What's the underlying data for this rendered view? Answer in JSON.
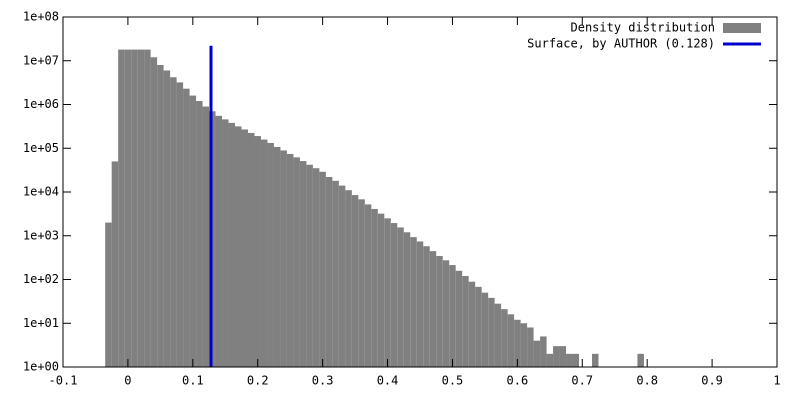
{
  "chart_data": {
    "type": "histogram",
    "log_y": true,
    "bins": [
      -0.035,
      -0.025,
      -0.015,
      -0.005,
      0.005,
      0.015,
      0.025,
      0.035,
      0.045,
      0.055,
      0.065,
      0.075,
      0.085,
      0.095,
      0.105,
      0.115,
      0.125,
      0.135,
      0.145,
      0.155,
      0.165,
      0.175,
      0.185,
      0.195,
      0.205,
      0.215,
      0.225,
      0.235,
      0.245,
      0.255,
      0.265,
      0.275,
      0.285,
      0.295,
      0.305,
      0.315,
      0.325,
      0.335,
      0.345,
      0.355,
      0.365,
      0.375,
      0.385,
      0.395,
      0.405,
      0.415,
      0.425,
      0.435,
      0.445,
      0.455,
      0.465,
      0.475,
      0.485,
      0.495,
      0.505,
      0.515,
      0.525,
      0.535,
      0.545,
      0.555,
      0.565,
      0.575,
      0.585,
      0.595,
      0.605,
      0.615,
      0.625,
      0.635,
      0.645,
      0.655,
      0.665,
      0.675,
      0.685,
      0.695,
      0.705,
      0.715,
      0.725,
      0.735,
      0.745,
      0.755,
      0.765,
      0.775,
      0.785,
      0.795
    ],
    "series": [
      {
        "name": "Density distribution",
        "color": "#808080",
        "values": [
          2000,
          50000,
          18000000,
          18000000,
          18000000,
          18000000,
          18000000,
          12000000,
          8000000,
          6000000,
          4200000,
          3200000,
          2300000,
          1600000,
          1200000,
          900000,
          700000,
          550000,
          457000,
          380000,
          316000,
          269000,
          224000,
          190000,
          158000,
          132000,
          107000,
          89000,
          74000,
          62000,
          51000,
          42000,
          35000,
          29000,
          22000,
          18000,
          14000,
          11000,
          8500,
          6800,
          5200,
          4100,
          3200,
          2500,
          1950,
          1550,
          1200,
          930,
          740,
          575,
          445,
          345,
          275,
          214,
          158,
          120,
          89,
          68,
          50,
          38,
          28,
          21,
          16,
          12,
          10,
          8,
          4,
          5,
          2,
          3,
          3,
          2,
          2,
          0,
          0,
          2,
          0,
          0,
          0,
          0,
          0,
          0,
          2
        ]
      }
    ],
    "vline": {
      "name": "Surface, by AUTHOR (0.128)",
      "color": "#0000cc",
      "x": 0.128,
      "y": [
        1,
        22000000
      ]
    },
    "xlim": [
      -0.1,
      1
    ],
    "xticks": [
      -0.1,
      0,
      0.1,
      0.2,
      0.3,
      0.4,
      0.5,
      0.6,
      0.7,
      0.8,
      0.9,
      1
    ],
    "ylim": [
      1,
      100000000
    ],
    "yticks": [
      {
        "value": 1,
        "label": "1e+00"
      },
      {
        "value": 10,
        "label": "1e+01"
      },
      {
        "value": 100,
        "label": "1e+02"
      },
      {
        "value": 1000,
        "label": "1e+03"
      },
      {
        "value": 10000,
        "label": "1e+04"
      },
      {
        "value": 100000,
        "label": "1e+05"
      },
      {
        "value": 1000000,
        "label": "1e+06"
      },
      {
        "value": 10000000,
        "label": "1e+07"
      },
      {
        "value": 100000000,
        "label": "1e+08"
      }
    ],
    "legend": "top-right"
  }
}
